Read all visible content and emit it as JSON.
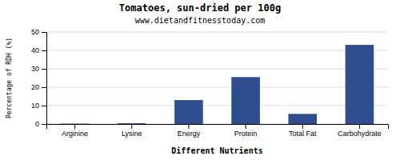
{
  "chart_data": {
    "type": "bar",
    "title": "Tomatoes, sun-dried per 100g",
    "subtitle": "www.dietandfitnesstoday.com",
    "xlabel": "Different Nutrients",
    "ylabel": "Percentage of RDH (%)",
    "categories": [
      "Arginine",
      "Lysine",
      "Energy",
      "Protein",
      "Total Fat",
      "Carbohydrate"
    ],
    "values": [
      0.2,
      0.4,
      13.0,
      25.5,
      5.5,
      43.0
    ],
    "color": "#2e4d8e",
    "ylim": [
      0,
      50
    ],
    "yticks": [
      0,
      10,
      20,
      30,
      40,
      50
    ],
    "grid": true
  }
}
